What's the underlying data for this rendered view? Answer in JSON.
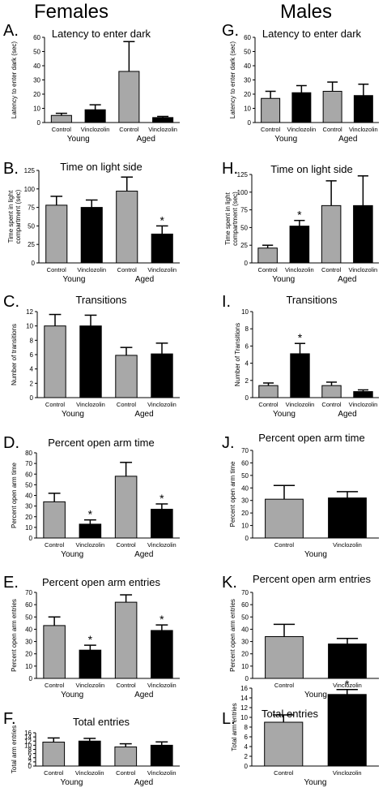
{
  "headings": {
    "left": "Females",
    "right": "Males"
  },
  "colors": {
    "control": "#a8a8a8",
    "vinclozolin": "#000000",
    "axis": "#000000"
  },
  "chart_data": [
    {
      "id": "A",
      "type": "bar",
      "title": "Latency to enter dark",
      "ylabel": "Latency to enter dark (sec)",
      "ylim": [
        0,
        60
      ],
      "yticks": [
        0,
        10,
        20,
        30,
        40,
        50,
        60
      ],
      "categories": [
        "Control",
        "Vinclozolin",
        "Control",
        "Vinclozolin"
      ],
      "groups": [
        "Young",
        "Aged"
      ],
      "values": [
        5,
        9,
        36,
        3.5
      ],
      "errors": [
        1.5,
        3.5,
        21,
        0.8
      ],
      "significant": []
    },
    {
      "id": "B",
      "type": "bar",
      "title": "Time on light side",
      "ylabel": "Time spent in light compartment (sec)",
      "ylim": [
        0,
        125
      ],
      "yticks": [
        0,
        25,
        50,
        75,
        100,
        125
      ],
      "categories": [
        "Control",
        "Vinclozolin",
        "Control",
        "Vinclozolin"
      ],
      "groups": [
        "Young",
        "Aged"
      ],
      "values": [
        78,
        75,
        97,
        39
      ],
      "errors": [
        12,
        10,
        19,
        11
      ],
      "significant": [
        3
      ]
    },
    {
      "id": "C",
      "type": "bar",
      "title": "Transitions",
      "ylabel": "Number of transitions",
      "ylim": [
        0,
        12
      ],
      "yticks": [
        0,
        2,
        4,
        6,
        8,
        10,
        12
      ],
      "categories": [
        "Control",
        "Vinclozolin",
        "Control",
        "Vinclozolin"
      ],
      "groups": [
        "Young",
        "Aged"
      ],
      "values": [
        10,
        10,
        5.9,
        6.1
      ],
      "errors": [
        1.6,
        1.5,
        1.1,
        1.5
      ],
      "significant": []
    },
    {
      "id": "D",
      "type": "bar",
      "title": "Percent open arm time",
      "ylabel": "Percent open arm time",
      "ylim": [
        0,
        80
      ],
      "yticks": [
        0,
        10,
        20,
        30,
        40,
        50,
        60,
        70,
        80
      ],
      "categories": [
        "Control",
        "Vinclozolin",
        "Control",
        "Vinclozolin"
      ],
      "groups": [
        "Young",
        "Aged"
      ],
      "values": [
        34,
        13,
        58,
        27
      ],
      "errors": [
        8,
        4,
        13,
        5
      ],
      "significant": [
        1,
        3
      ]
    },
    {
      "id": "E",
      "type": "bar",
      "title": "Percent open arm entries",
      "ylabel": "Percent open arm entries",
      "ylim": [
        0,
        70
      ],
      "yticks": [
        0,
        10,
        20,
        30,
        40,
        50,
        60,
        70
      ],
      "categories": [
        "Control",
        "Vinclozolin",
        "Control",
        "Vinclozolin"
      ],
      "groups": [
        "Young",
        "Aged"
      ],
      "values": [
        43,
        23,
        62,
        39
      ],
      "errors": [
        7,
        4,
        6,
        4.5
      ],
      "significant": [
        1,
        3
      ]
    },
    {
      "id": "F",
      "type": "bar",
      "title": "Total entries",
      "ylabel": "Total arm entries",
      "ylim": [
        0,
        16
      ],
      "yticks": [
        0,
        2,
        4,
        6,
        8,
        10,
        12,
        14,
        16
      ],
      "categories": [
        "Control",
        "Vinclozolin",
        "Control",
        "Vinclozolin"
      ],
      "groups": [
        "Young",
        "Aged"
      ],
      "values": [
        11.5,
        12,
        9.2,
        10
      ],
      "errors": [
        2,
        1.3,
        1.5,
        1.6
      ],
      "significant": []
    },
    {
      "id": "G",
      "type": "bar",
      "title": "Latency to enter dark",
      "ylabel": "Latency to enter dark (sec)",
      "ylim": [
        0,
        60
      ],
      "yticks": [
        0,
        10,
        20,
        30,
        40,
        50,
        60
      ],
      "categories": [
        "Control",
        "Vinclozolin",
        "Control",
        "Vinclozolin"
      ],
      "groups": [
        "Young",
        "Aged"
      ],
      "values": [
        17,
        21,
        22,
        19
      ],
      "errors": [
        5,
        5,
        6.5,
        8
      ],
      "significant": []
    },
    {
      "id": "H",
      "type": "bar",
      "title": "Time on light side",
      "ylabel": "Time spent in light compartment (sec)",
      "ylim": [
        0,
        125
      ],
      "yticks": [
        0,
        25,
        50,
        75,
        100,
        125
      ],
      "categories": [
        "Control",
        "Vinclozolin",
        "Control",
        "Vinclozolin"
      ],
      "groups": [
        "Young",
        "Aged"
      ],
      "values": [
        21,
        52,
        81,
        81
      ],
      "errors": [
        4,
        8,
        35,
        42
      ],
      "significant": [
        1
      ]
    },
    {
      "id": "I",
      "type": "bar",
      "title": "Transitions",
      "ylabel": "Number of Transitions",
      "ylim": [
        0,
        10
      ],
      "yticks": [
        0,
        2,
        4,
        6,
        8,
        10
      ],
      "categories": [
        "Control",
        "Vinclozolin",
        "Control",
        "Vinclozolin"
      ],
      "groups": [
        "Young",
        "Aged"
      ],
      "values": [
        1.4,
        5.1,
        1.4,
        0.7
      ],
      "errors": [
        0.3,
        1.2,
        0.4,
        0.2
      ],
      "significant": [
        1
      ]
    },
    {
      "id": "J",
      "type": "bar",
      "title": "Percent open arm time",
      "ylabel": "Percent open arm time",
      "ylim": [
        0,
        70
      ],
      "yticks": [
        0,
        10,
        20,
        30,
        40,
        50,
        60,
        70
      ],
      "categories": [
        "Control",
        "Vinclozolin"
      ],
      "groups": [
        "Young"
      ],
      "values": [
        31,
        32
      ],
      "errors": [
        11,
        5
      ],
      "significant": []
    },
    {
      "id": "K",
      "type": "bar",
      "title": "Percent open arm entries",
      "ylabel": "Percent open arm entries",
      "ylim": [
        0,
        70
      ],
      "yticks": [
        0,
        10,
        20,
        30,
        40,
        50,
        60,
        70
      ],
      "categories": [
        "Control",
        "Vinclozolin"
      ],
      "groups": [
        "Young"
      ],
      "values": [
        34,
        28
      ],
      "errors": [
        10,
        4.5
      ],
      "significant": []
    },
    {
      "id": "L",
      "type": "bar",
      "title": "Total entries",
      "ylabel": "Total arm entries",
      "ylim": [
        0,
        16
      ],
      "yticks": [
        0,
        2,
        4,
        6,
        8,
        10,
        12,
        14,
        16
      ],
      "categories": [
        "Control",
        "Vinclozolin"
      ],
      "groups": [
        "Young"
      ],
      "values": [
        9,
        14.7
      ],
      "errors": [
        1.5,
        1
      ],
      "significant": [
        1
      ]
    }
  ]
}
